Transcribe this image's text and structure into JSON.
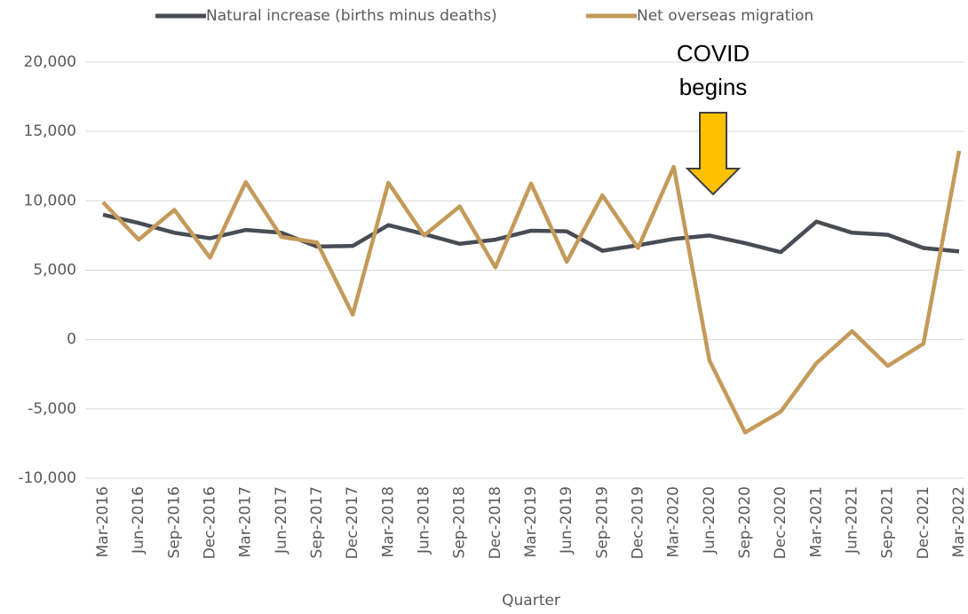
{
  "chart_data": {
    "type": "line",
    "x_label": "Quarter",
    "annotation": [
      "COVID",
      "begins"
    ],
    "categories": [
      "Mar-2016",
      "Jun-2016",
      "Sep-2016",
      "Dec-2016",
      "Mar-2017",
      "Jun-2017",
      "Sep-2017",
      "Dec-2017",
      "Mar-2018",
      "Jun-2018",
      "Sep-2018",
      "Dec-2018",
      "Mar-2019",
      "Jun-2019",
      "Sep-2019",
      "Dec-2019",
      "Mar-2020",
      "Jun-2020",
      "Sep-2020",
      "Dec-2020",
      "Mar-2021",
      "Jun-2021",
      "Sep-2021",
      "Dec-2021",
      "Mar-2022"
    ],
    "series": [
      {
        "name": "Natural increase (births minus deaths)",
        "color": "#474c55",
        "values": [
          9000,
          8400,
          7700,
          7300,
          7900,
          7700,
          6700,
          6750,
          8250,
          7600,
          6900,
          7200,
          7850,
          7800,
          6400,
          6800,
          7250,
          7500,
          6950,
          6300,
          8500,
          7700,
          7550,
          6600,
          6350
        ]
      },
      {
        "name": "Net overseas migration",
        "color": "#c49a5a",
        "values": [
          9900,
          7200,
          9350,
          5900,
          11350,
          7400,
          7000,
          1800,
          11300,
          7500,
          9600,
          5200,
          11250,
          5600,
          10400,
          6600,
          12450,
          -1500,
          -6700,
          -5200,
          -1700,
          600,
          -1900,
          -300,
          13600
        ]
      }
    ],
    "ylim": [
      -10000,
      20000
    ],
    "yticks": [
      {
        "value": -10000,
        "label": "-10,000"
      },
      {
        "value": -5000,
        "label": "-5,000"
      },
      0,
      {
        "value": 5000,
        "label": "5,000"
      },
      {
        "value": 10000,
        "label": "10,000"
      },
      {
        "value": 15000,
        "label": "15,000"
      },
      {
        "value": 20000,
        "label": "20,000"
      }
    ],
    "grid": true,
    "legend": "top"
  }
}
